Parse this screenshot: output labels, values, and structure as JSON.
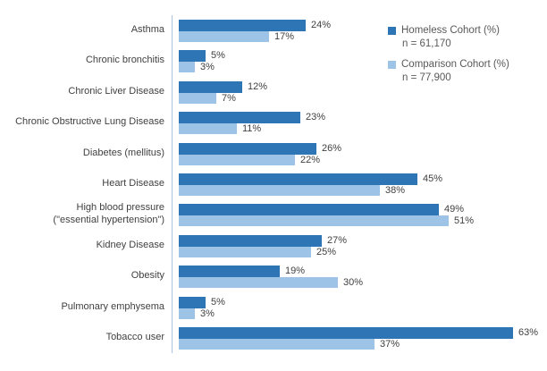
{
  "chart_data": {
    "type": "bar",
    "orientation": "horizontal",
    "title": "",
    "xlabel": "",
    "ylabel": "",
    "xlim": [
      0,
      70
    ],
    "grid": false,
    "legend_position": "top-right",
    "value_suffix": "%",
    "categories": [
      "Asthma",
      "Chronic bronchitis",
      "Chronic Liver Disease",
      "Chronic Obstructive Lung Disease",
      "Diabetes (mellitus)",
      "Heart Disease",
      "High blood pressure (\"essential hypertension\")",
      "Kidney Disease",
      "Obesity",
      "Pulmonary emphysema",
      "Tobacco user"
    ],
    "categories_display": [
      [
        "Asthma"
      ],
      [
        "Chronic bronchitis"
      ],
      [
        "Chronic Liver Disease"
      ],
      [
        "Chronic Obstructive Lung Disease"
      ],
      [
        "Diabetes (mellitus)"
      ],
      [
        "Heart Disease"
      ],
      [
        "High blood pressure",
        "(\"essential hypertension\")"
      ],
      [
        "Kidney Disease"
      ],
      [
        "Obesity"
      ],
      [
        "Pulmonary emphysema"
      ],
      [
        "Tobacco user"
      ]
    ],
    "series": [
      {
        "name": "Homeless Cohort (%)",
        "color": "#2e75b6",
        "values": [
          24,
          5,
          12,
          23,
          26,
          45,
          49,
          27,
          19,
          5,
          63
        ]
      },
      {
        "name": "Comparison Cohort (%)",
        "color": "#9dc3e6",
        "values": [
          17,
          3,
          7,
          11,
          22,
          38,
          51,
          25,
          30,
          3,
          37
        ]
      }
    ]
  },
  "legend": {
    "items": [
      {
        "label": "Homeless Cohort (%)",
        "sub": "n = 61,170",
        "color": "#2e75b6"
      },
      {
        "label": "Comparison Cohort (%)",
        "sub": "n = 77,900",
        "color": "#9dc3e6"
      }
    ]
  },
  "colors": {
    "axis_line": "#a9c6e3",
    "label_text": "#404040",
    "legend_text": "#595959",
    "background": "#ffffff"
  }
}
